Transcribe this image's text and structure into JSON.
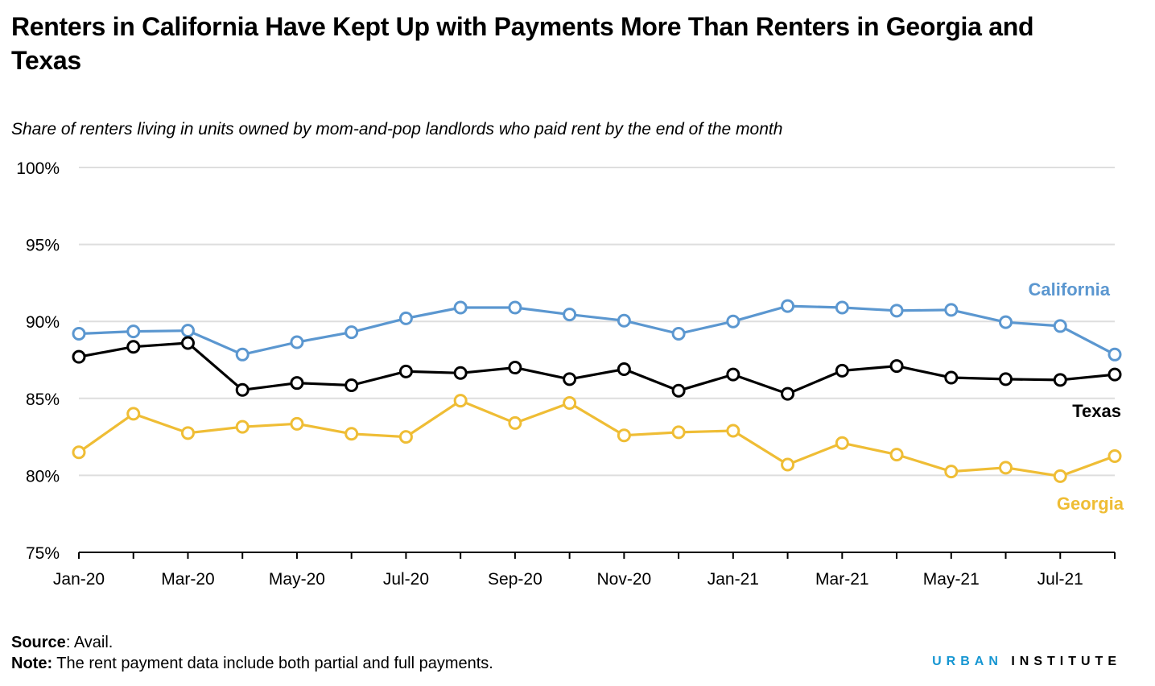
{
  "title": "Renters in California Have Kept Up with Payments More Than Renters in Georgia and Texas",
  "subtitle": "Share of renters living in units owned by mom-and-pop landlords who paid rent by the end of the month",
  "footer": {
    "source_label": "Source",
    "source_text": ": Avail.",
    "note_label": "Note:",
    "note_text": " The rent payment data include both partial and full payments."
  },
  "brand": {
    "part1": "URBAN",
    "part2": "INSTITUTE"
  },
  "colors": {
    "California": "#5b97d0",
    "Texas": "#000000",
    "Georgia": "#efbd35",
    "grid": "#dedede"
  },
  "chart_data": {
    "type": "line",
    "title": "Renters in California Have Kept Up with Payments More Than Renters in Georgia and Texas",
    "subtitle": "Share of renters living in units owned by mom-and-pop landlords who paid rent by the end of the month",
    "categories": [
      "Jan-20",
      "Feb-20",
      "Mar-20",
      "Apr-20",
      "May-20",
      "Jun-20",
      "Jul-20",
      "Aug-20",
      "Sep-20",
      "Oct-20",
      "Nov-20",
      "Dec-20",
      "Jan-21",
      "Feb-21",
      "Mar-21",
      "Apr-21",
      "May-21",
      "Jun-21",
      "Jul-21",
      "Aug-21"
    ],
    "x_tick_labels": [
      "Jan-20",
      "",
      "Mar-20",
      "",
      "May-20",
      "",
      "Jul-20",
      "",
      "Sep-20",
      "",
      "Nov-20",
      "",
      "Jan-21",
      "",
      "Mar-21",
      "",
      "May-21",
      "",
      "Jul-21",
      ""
    ],
    "y_tick_labels": [
      "75%",
      "80%",
      "85%",
      "90%",
      "95%",
      "100%"
    ],
    "y_ticks": [
      75,
      80,
      85,
      90,
      95,
      100
    ],
    "ylim": [
      75,
      100
    ],
    "xlabel": "",
    "ylabel": "",
    "grid": true,
    "series": [
      {
        "name": "California",
        "label": "California",
        "values": [
          89.2,
          89.35,
          89.4,
          87.85,
          88.65,
          89.3,
          90.2,
          90.9,
          90.9,
          90.45,
          90.05,
          89.2,
          90.0,
          91.0,
          90.9,
          90.7,
          90.75,
          89.95,
          89.7,
          87.85
        ]
      },
      {
        "name": "Texas",
        "label": "Texas",
        "values": [
          87.7,
          88.35,
          88.6,
          85.55,
          86.0,
          85.85,
          86.75,
          86.65,
          87.0,
          86.25,
          86.9,
          85.5,
          86.55,
          85.3,
          86.8,
          87.1,
          86.35,
          86.25,
          86.2,
          86.55
        ]
      },
      {
        "name": "Georgia",
        "label": "Georgia",
        "values": [
          81.5,
          84.0,
          82.75,
          83.15,
          83.35,
          82.7,
          82.5,
          84.85,
          83.4,
          84.7,
          82.6,
          82.8,
          82.9,
          80.7,
          82.1,
          81.35,
          80.25,
          80.5,
          79.95,
          81.25
        ]
      }
    ]
  }
}
